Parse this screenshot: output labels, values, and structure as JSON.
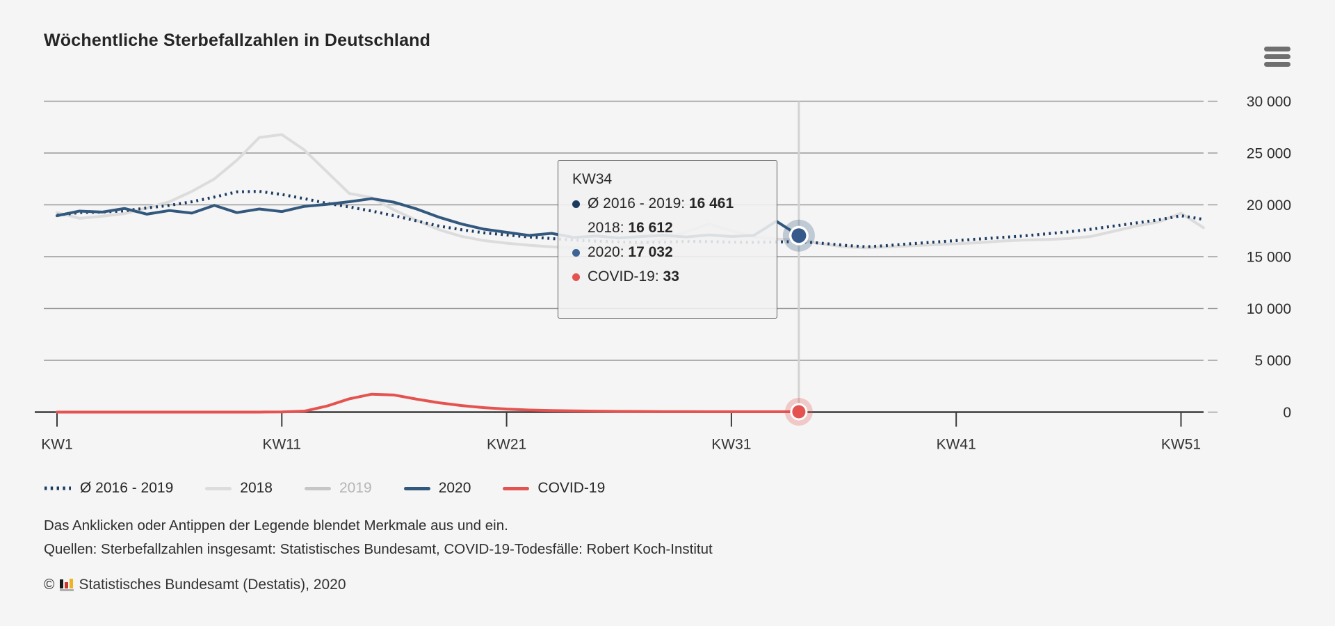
{
  "page": {
    "background": "#f5f5f5"
  },
  "header": {
    "title": "Wöchentliche Sterbefallzahlen in Deutschland",
    "menu_icon": "hamburger-icon"
  },
  "chart_data": {
    "type": "line",
    "title": "Wöchentliche Sterbefallzahlen in Deutschland",
    "x_axis": {
      "unit": "Kalenderwoche",
      "range_weeks": [
        1,
        52
      ],
      "ticks": [
        {
          "label": "KW1",
          "week": 1
        },
        {
          "label": "KW11",
          "week": 11
        },
        {
          "label": "KW21",
          "week": 21
        },
        {
          "label": "KW31",
          "week": 31
        },
        {
          "label": "KW41",
          "week": 41
        },
        {
          "label": "KW51",
          "week": 51
        }
      ]
    },
    "y_axis": {
      "position": "right",
      "ylim": [
        0,
        30000
      ],
      "grid": true,
      "ticks": [
        {
          "label": "0",
          "value": 0
        },
        {
          "label": "5 000",
          "value": 5000
        },
        {
          "label": "10 000",
          "value": 10000
        },
        {
          "label": "15 000",
          "value": 15000
        },
        {
          "label": "20 000",
          "value": 20000
        },
        {
          "label": "25 000",
          "value": 25000
        },
        {
          "label": "30 000",
          "value": 30000
        }
      ]
    },
    "series": [
      {
        "name": "Ø 2016 - 2019",
        "color": "#1b3a5f",
        "style": "dotted",
        "visible": true,
        "start_week": 1,
        "values": [
          19000,
          19250,
          19300,
          19420,
          19700,
          19950,
          20300,
          20750,
          21250,
          21300,
          21000,
          20600,
          20150,
          19800,
          19400,
          18950,
          18450,
          17950,
          17600,
          17300,
          17100,
          16900,
          16750,
          16600,
          16500,
          16420,
          16380,
          16400,
          16480,
          16450,
          16400,
          16380,
          16420,
          16461,
          16300,
          16100,
          15950,
          16080,
          16250,
          16400,
          16550,
          16700,
          16850,
          17000,
          17200,
          17400,
          17650,
          17950,
          18250,
          18550,
          18950,
          18600
        ]
      },
      {
        "name": "2018",
        "color": "#dcdcdc",
        "style": "solid",
        "visible": true,
        "start_week": 1,
        "values": [
          19250,
          18700,
          18900,
          19150,
          19700,
          20300,
          21300,
          22500,
          24300,
          26500,
          26780,
          25300,
          23200,
          21100,
          20700,
          19500,
          18500,
          17600,
          16950,
          16550,
          16300,
          16100,
          15950,
          15850,
          15800,
          15950,
          16250,
          16700,
          17400,
          18150,
          17500,
          16900,
          16700,
          16612,
          16250,
          15950,
          15850,
          15950,
          16050,
          16150,
          16250,
          16350,
          16500,
          16600,
          16650,
          16750,
          16950,
          17450,
          17950,
          18350,
          19190,
          17800
        ]
      },
      {
        "name": "2019",
        "color": "#c6c6c6",
        "style": "solid",
        "visible": false,
        "start_week": 1,
        "values": null
      },
      {
        "name": "2020",
        "color": "#33587e",
        "style": "solid",
        "visible": true,
        "start_week": 1,
        "values": [
          18950,
          19400,
          19300,
          19650,
          19100,
          19450,
          19200,
          19950,
          19250,
          19600,
          19350,
          19850,
          20050,
          20300,
          20600,
          20250,
          19600,
          18800,
          18150,
          17650,
          17350,
          17050,
          17250,
          16850,
          17000,
          16800,
          16950,
          17050,
          16900,
          17100,
          16950,
          17050,
          18416,
          17032
        ]
      },
      {
        "name": "COVID-19",
        "color": "#e4534f",
        "style": "solid",
        "visible": true,
        "start_week": 1,
        "values": [
          0,
          0,
          0,
          0,
          0,
          0,
          0,
          0,
          0,
          3,
          15,
          90,
          580,
          1280,
          1730,
          1650,
          1250,
          900,
          630,
          430,
          290,
          200,
          150,
          115,
          90,
          70,
          55,
          45,
          40,
          35,
          33,
          30,
          31,
          33
        ]
      }
    ],
    "highlight": {
      "week": 34,
      "week_label": "KW34",
      "series_2020": "2020",
      "series_covid": "COVID-19"
    }
  },
  "tooltip": {
    "title": "KW34",
    "rows": [
      {
        "label": "Ø 2016 - 2019: ",
        "value": "16 461",
        "color": "#1b3a5f"
      },
      {
        "label": "2018: ",
        "value": "16 612",
        "color": "#d9d9d9"
      },
      {
        "label": "2020: ",
        "value": "17 032",
        "color": "#3c6494"
      },
      {
        "label": "COVID-19: ",
        "value": "33",
        "color": "#e4534f"
      }
    ]
  },
  "legend": {
    "items": [
      {
        "label": "Ø 2016 - 2019",
        "color": "#1b3a5f",
        "swatch": "dotted",
        "muted": false
      },
      {
        "label": "2018",
        "color": "#dcdcdc",
        "swatch": "solid",
        "muted": false
      },
      {
        "label": "2019",
        "color": "#c6c6c6",
        "swatch": "solid",
        "muted": true
      },
      {
        "label": "2020",
        "color": "#33587e",
        "swatch": "solid",
        "muted": false
      },
      {
        "label": "COVID-19",
        "color": "#e4534f",
        "swatch": "solid",
        "muted": false
      }
    ]
  },
  "footer": {
    "note": "Das Anklicken oder Antippen der Legende blendet Merkmale aus und ein.",
    "sources": "Quellen: Sterbefallzahlen insgesamt: Statistisches Bundesamt, COVID-19-Todesfälle: Robert Koch-Institut",
    "copyright_symbol": "©",
    "copyright_text": "Statistisches Bundesamt (Destatis), 2020",
    "logo_colors": {
      "bar1": "#1a1a1a",
      "bar2": "#c8372c",
      "bar3": "#f0b323",
      "base": "#b0b0b0"
    }
  },
  "style_colors": {
    "background": "#f5f5f5",
    "gridline": "#999999",
    "axis_line": "#3a3a3a",
    "crosshair": "#d2d2d2",
    "halo_blue": "rgba(52,88,126,0.27)",
    "halo_red": "rgba(228,83,79,0.27)"
  }
}
